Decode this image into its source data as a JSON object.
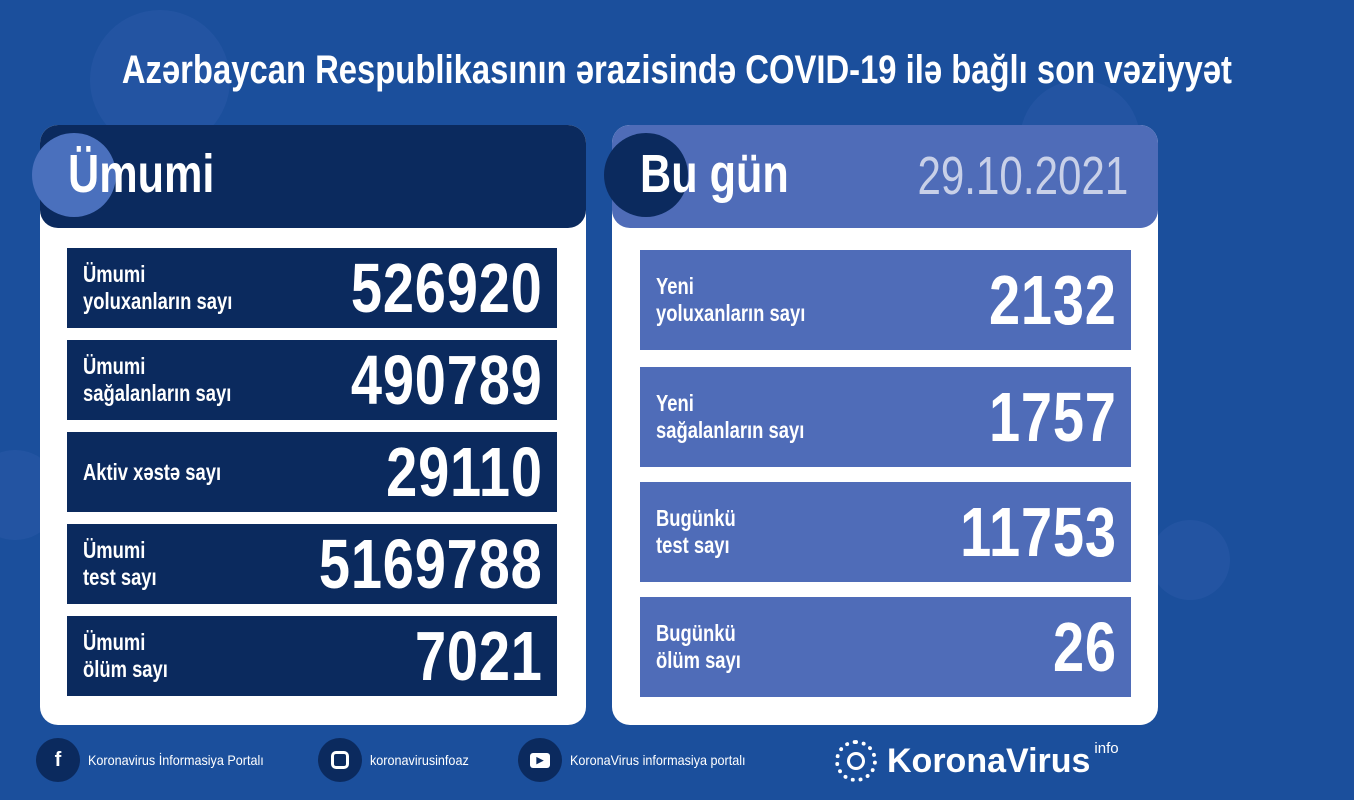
{
  "title": "Azərbaycan Respublikasının ərazisində COVID-19 ilə bağlı son vəziyyət",
  "total": {
    "heading": "Ümumi",
    "rows": [
      {
        "label": "Ümumi\nyoluxanların sayı",
        "value": "526920"
      },
      {
        "label": "Ümumi\nsağalanların sayı",
        "value": "490789"
      },
      {
        "label": "Aktiv xəstə sayı",
        "value": "29110"
      },
      {
        "label": "Ümumi\ntest sayı",
        "value": "5169788"
      },
      {
        "label": "Ümumi\nölüm sayı",
        "value": "7021"
      }
    ]
  },
  "today": {
    "heading": "Bu gün",
    "date": "29.10.2021",
    "rows": [
      {
        "label": "Yeni\nyoluxanların sayı",
        "value": "2132"
      },
      {
        "label": "Yeni\nsağalanların sayı",
        "value": "1757"
      },
      {
        "label": "Bugünkü\ntest sayı",
        "value": "11753"
      },
      {
        "label": "Bugünkü\nölüm sayı",
        "value": "26"
      }
    ]
  },
  "footer": {
    "facebook": {
      "icon": "facebook-icon",
      "text": "Koronavirus İnformasiya Portalı"
    },
    "instagram": {
      "icon": "instagram-icon",
      "text": "koronavirusinfoaz"
    },
    "youtube": {
      "icon": "youtube-icon",
      "text": "KoronaVirus informasiya portalı"
    },
    "brand": "KoronaVirus",
    "brand_suffix": "info"
  },
  "colors": {
    "background": "#1b4f9c",
    "navy": "#0b2a5e",
    "accent": "#4f6cb8",
    "date": "#c8d0e8"
  }
}
